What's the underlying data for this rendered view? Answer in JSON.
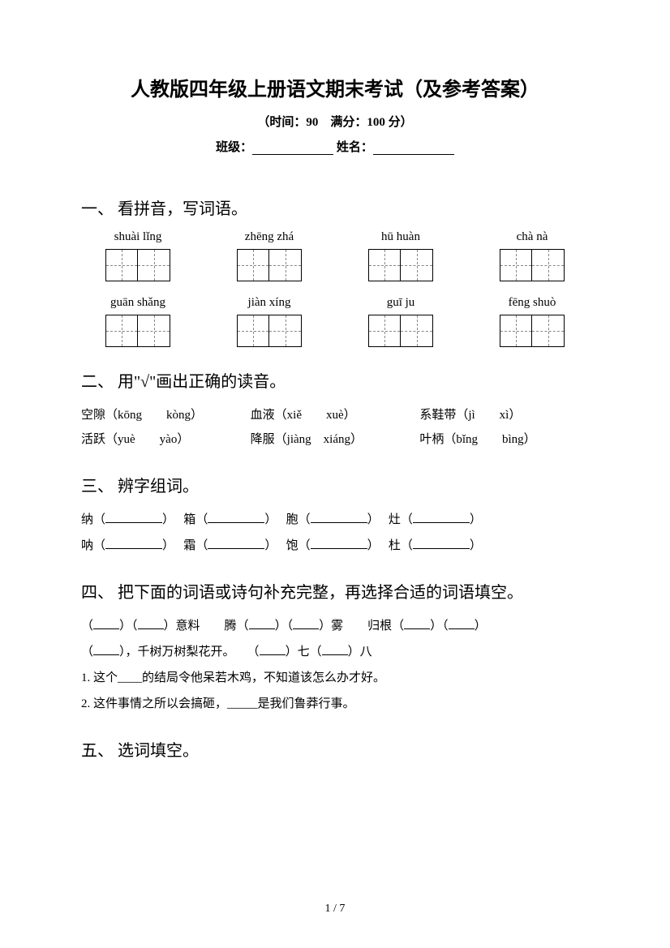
{
  "title": "人教版四年级上册语文期末考试（及参考答案）",
  "subtitle": "（时间：90　满分：100 分）",
  "class_label": "班级：",
  "name_label": "姓名：",
  "sections": {
    "s1": {
      "heading": "一、 看拼音，写词语。",
      "row1": [
        "shuài lǐng",
        "zhēng zhá",
        "hū huàn",
        "chà nà"
      ],
      "row2": [
        "guān shǎng",
        "jiàn xíng",
        "guī ju",
        "fēng shuò"
      ]
    },
    "s2": {
      "heading": "二、 用\"√\"画出正确的读音。",
      "items": [
        [
          "空隙（kōng　　kòng）",
          "血液（xiě　　xuè）",
          "系鞋带（jì　　xì）"
        ],
        [
          "活跃（yuè　　yào）",
          "降服（jiàng　xiáng）",
          "叶柄（bǐng　　bìng）"
        ]
      ]
    },
    "s3": {
      "heading": "三、 辨字组词。",
      "line1_chars": [
        "纳",
        "箱",
        "胞",
        "灶"
      ],
      "line2_chars": [
        "呐",
        "霜",
        "饱",
        "杜"
      ]
    },
    "s4": {
      "heading": "四、 把下面的词语或诗句补充完整，再选择合适的词语填空。",
      "line1_a": "意料　　腾",
      "line1_b": "雾　　归根",
      "line2_a": "，千树万树梨花开。",
      "line2_b": "七",
      "line2_c": "八",
      "q1": "1. 这个____的结局令他呆若木鸡，不知道该怎么办才好。",
      "q2": "2. 这件事情之所以会搞砸，_____是我们鲁莽行事。"
    },
    "s5": {
      "heading": "五、 选词填空。"
    }
  },
  "footer": "1 / 7"
}
